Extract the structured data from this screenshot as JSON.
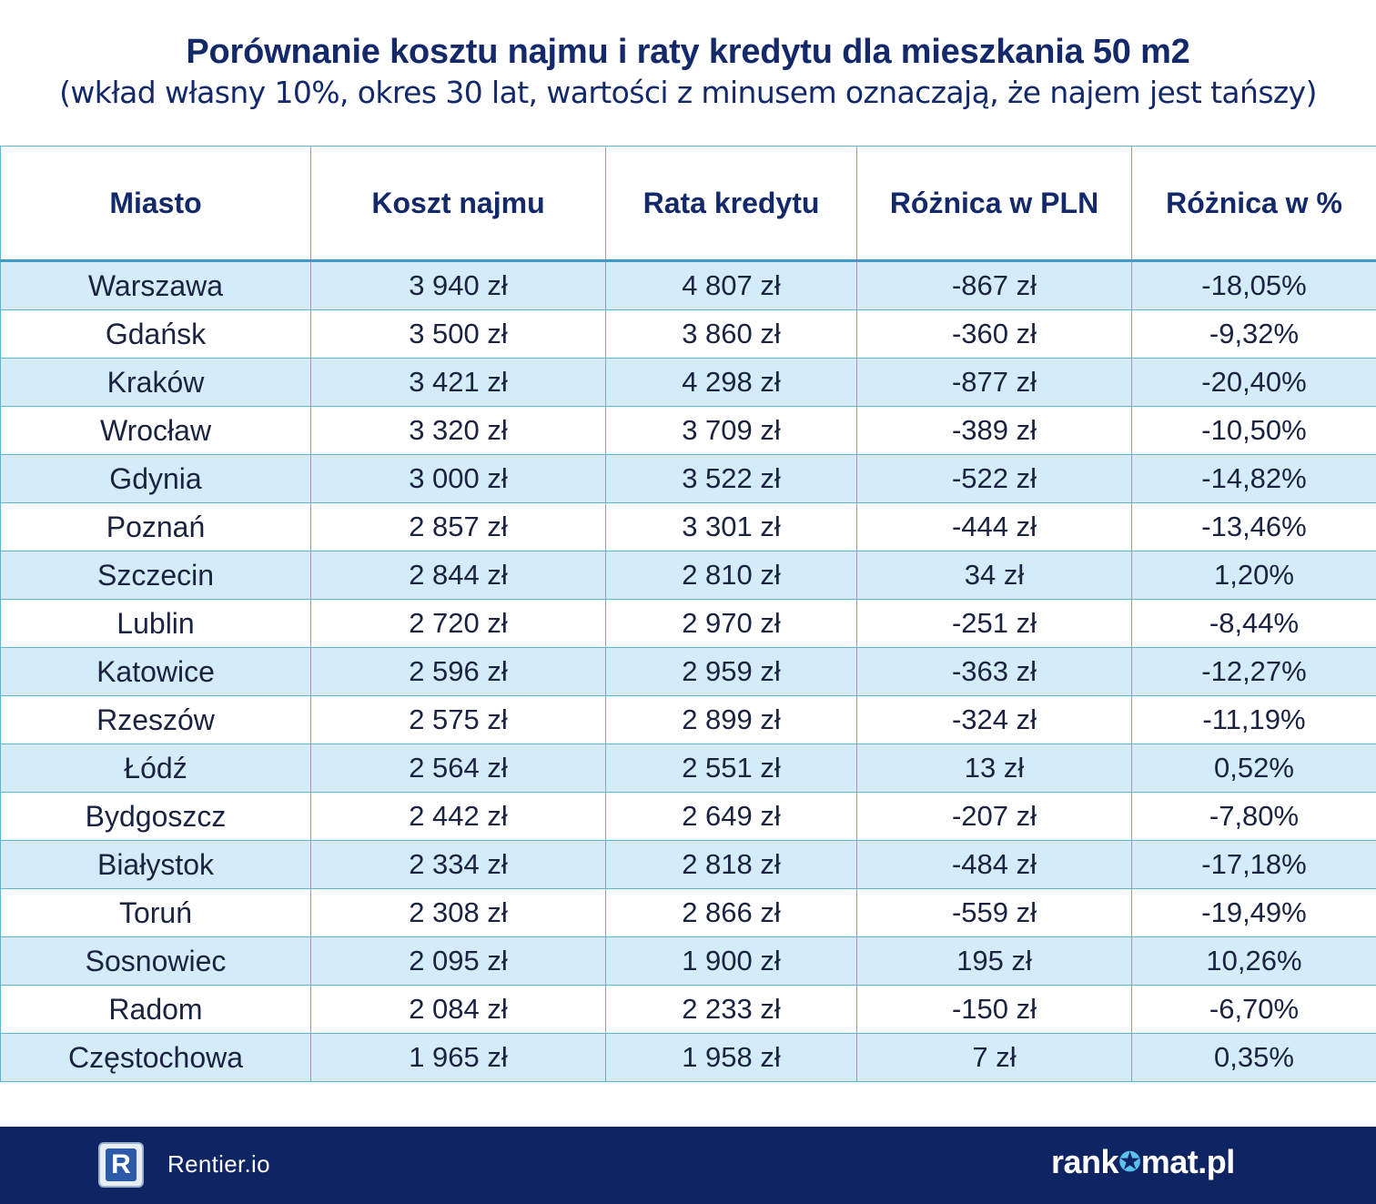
{
  "title": "Porównanie kosztu najmu i raty kredytu dla mieszkania 50 m2",
  "subtitle": "(wkład własny 10%, okres 30 lat, wartości z minusem oznaczają, że najem jest tańszy)",
  "colors": {
    "navy": "#13296a",
    "footer_bg": "#0f2462",
    "row_alt": "#d3ecf8",
    "border": "#5db3d4",
    "accent_star": "#59c3ee"
  },
  "chart_data": {
    "type": "table",
    "title": "Porównanie kosztu najmu i raty kredytu dla mieszkania 50 m2",
    "subtitle": "(wkład własny 10%, okres 30 lat, wartości z minusem oznaczają, że najem jest tańszy)",
    "columns": [
      "Miasto",
      "Koszt najmu",
      "Rata kredytu",
      "Różnica w PLN",
      "Różnica w %"
    ],
    "rows": [
      [
        "Warszawa",
        "3 940 zł",
        "4 807 zł",
        "-867 zł",
        "-18,05%"
      ],
      [
        "Gdańsk",
        "3 500 zł",
        "3 860 zł",
        "-360 zł",
        "-9,32%"
      ],
      [
        "Kraków",
        "3 421 zł",
        "4 298 zł",
        "-877 zł",
        "-20,40%"
      ],
      [
        "Wrocław",
        "3 320 zł",
        "3 709 zł",
        "-389 zł",
        "-10,50%"
      ],
      [
        "Gdynia",
        "3 000 zł",
        "3 522 zł",
        "-522 zł",
        "-14,82%"
      ],
      [
        "Poznań",
        "2 857 zł",
        "3 301 zł",
        "-444 zł",
        "-13,46%"
      ],
      [
        "Szczecin",
        "2 844 zł",
        "2 810 zł",
        "34 zł",
        "1,20%"
      ],
      [
        "Lublin",
        "2 720 zł",
        "2 970 zł",
        "-251 zł",
        "-8,44%"
      ],
      [
        "Katowice",
        "2 596 zł",
        "2 959 zł",
        "-363 zł",
        "-12,27%"
      ],
      [
        "Rzeszów",
        "2 575 zł",
        "2 899 zł",
        "-324 zł",
        "-11,19%"
      ],
      [
        "Łódź",
        "2 564 zł",
        "2 551 zł",
        "13 zł",
        "0,52%"
      ],
      [
        "Bydgoszcz",
        "2 442 zł",
        "2 649 zł",
        "-207 zł",
        "-7,80%"
      ],
      [
        "Białystok",
        "2 334 zł",
        "2 818 zł",
        "-484 zł",
        "-17,18%"
      ],
      [
        "Toruń",
        "2 308 zł",
        "2 866 zł",
        "-559 zł",
        "-19,49%"
      ],
      [
        "Sosnowiec",
        "2 095 zł",
        "1 900 zł",
        "195 zł",
        "10,26%"
      ],
      [
        "Radom",
        "2 084 zł",
        "2 233 zł",
        "-150 zł",
        "-6,70%"
      ],
      [
        "Częstochowa",
        "1 965 zł",
        "1 958 zł",
        "7 zł",
        "0,35%"
      ]
    ]
  },
  "footer": {
    "left_logo_letter": "R",
    "left_brand": "Rentier.io",
    "right_brand_before": "rank",
    "right_brand_after": "mat.pl",
    "right_brand_star_icon": "star-icon"
  }
}
